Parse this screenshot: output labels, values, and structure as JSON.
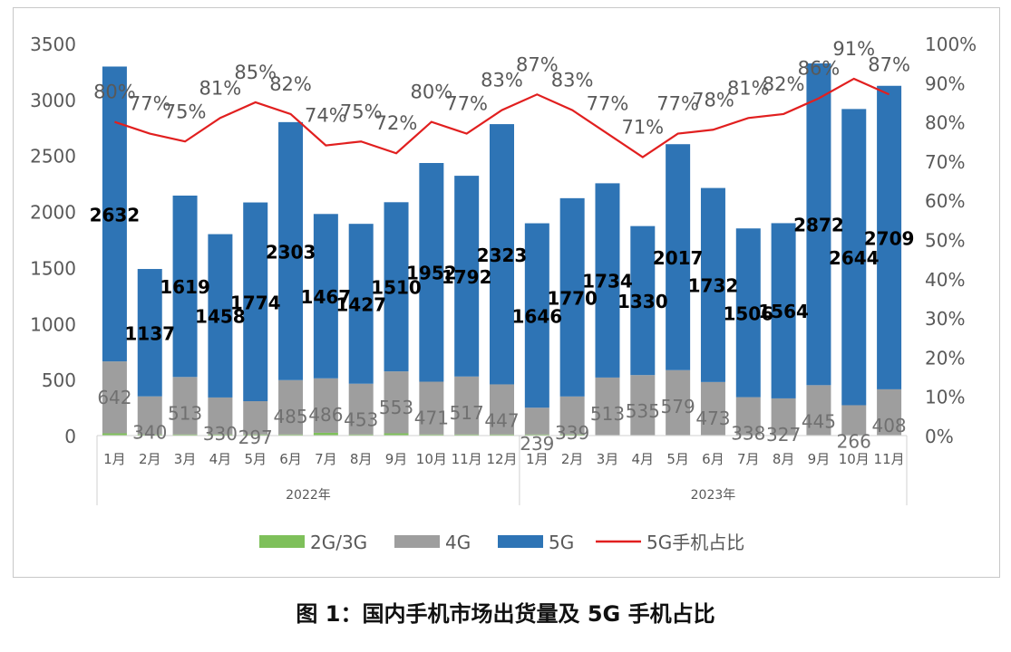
{
  "caption": "图 1：国内手机市场出货量及 5G 手机占比",
  "chart_data": {
    "type": "bar",
    "stacked": true,
    "categories": [
      "1月",
      "2月",
      "3月",
      "4月",
      "5月",
      "6月",
      "7月",
      "8月",
      "9月",
      "10月",
      "11月",
      "12月",
      "1月",
      "2月",
      "3月",
      "4月",
      "5月",
      "6月",
      "7月",
      "8月",
      "9月",
      "10月",
      "11月"
    ],
    "year_groups": [
      {
        "label": "2022年",
        "count": 12
      },
      {
        "label": "2023年",
        "count": 11
      }
    ],
    "series": [
      {
        "name": "2G/3G",
        "kind": "bar",
        "color": "#7ec05a",
        "values": [
          20,
          10,
          10,
          10,
          10,
          10,
          25,
          10,
          20,
          10,
          10,
          10,
          10,
          10,
          5,
          5,
          5,
          5,
          5,
          5,
          5,
          5,
          5
        ]
      },
      {
        "name": "4G",
        "kind": "bar",
        "color": "#9e9e9e",
        "values": [
          642,
          340,
          513,
          330,
          297,
          485,
          486,
          453,
          553,
          471,
          517,
          447,
          239,
          339,
          513,
          535,
          579,
          473,
          338,
          327,
          445,
          266,
          408
        ]
      },
      {
        "name": "5G",
        "kind": "bar",
        "color": "#2e74b5",
        "values": [
          2632,
          1137,
          1619,
          1458,
          1774,
          2303,
          1467,
          1427,
          1510,
          1952,
          1792,
          2323,
          1646,
          1770,
          1734,
          1330,
          2017,
          1732,
          1506,
          1564,
          2872,
          2644,
          2709
        ]
      },
      {
        "name": "5G手机占比",
        "kind": "line",
        "axis": "right",
        "color": "#e11f1f",
        "values": [
          80,
          77,
          75,
          81,
          85,
          82,
          74,
          75,
          72,
          80,
          77,
          83,
          87,
          83,
          77,
          71,
          77,
          78,
          81,
          82,
          86,
          91,
          87
        ]
      }
    ],
    "y_left": {
      "min": 0,
      "max": 3500,
      "ticks": [
        0,
        500,
        1000,
        1500,
        2000,
        2500,
        3000,
        3500
      ]
    },
    "y_right": {
      "min": 0,
      "max": 100,
      "ticks": [
        "0%",
        "10%",
        "20%",
        "30%",
        "40%",
        "50%",
        "60%",
        "70%",
        "80%",
        "90%",
        "100%"
      ]
    },
    "legend_position": "bottom",
    "grid": false
  }
}
